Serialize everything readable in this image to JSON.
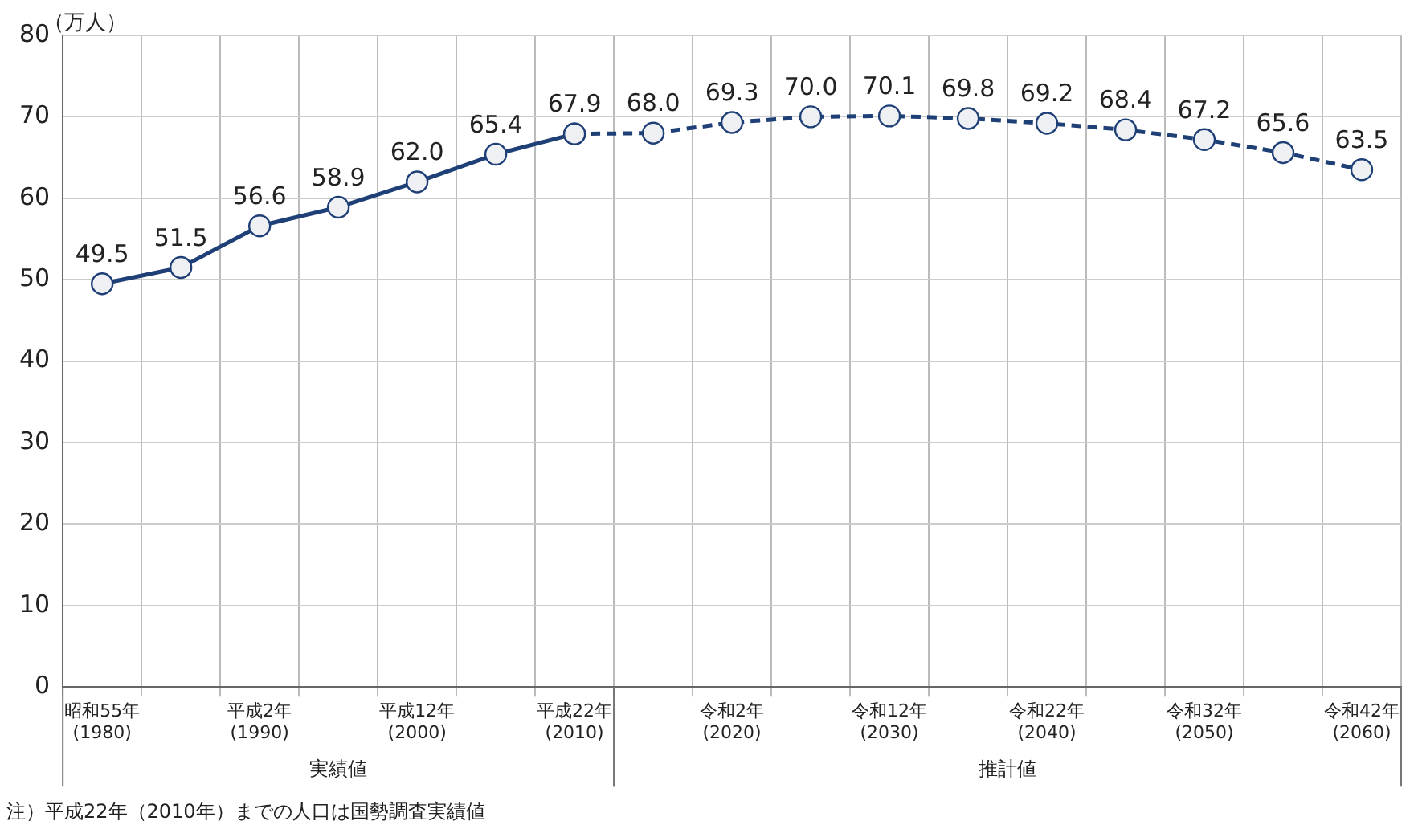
{
  "chart_data": {
    "type": "line",
    "ylabel": "（万人）",
    "categories": [
      "昭和55年\n(1980)",
      null,
      "平成2年\n(1990)",
      null,
      "平成12年\n(2000)",
      null,
      "平成22年\n(2010)",
      null,
      "令和2年\n(2020)",
      null,
      "令和12年\n(2030)",
      null,
      "令和22年\n(2040)",
      null,
      "令和32年\n(2050)",
      null,
      "令和42年\n(2060)"
    ],
    "series": [
      {
        "color": "#1f3f77",
        "line_style": "solid",
        "values": [
          49.5,
          51.5,
          56.6,
          58.9,
          62.0,
          65.4,
          67.9,
          null,
          null,
          null,
          null,
          null,
          null,
          null,
          null,
          null,
          null
        ],
        "value_labels": [
          "49.5",
          "51.5",
          "56.6",
          "58.9",
          "62.0",
          "65.4",
          "67.9",
          null,
          null,
          null,
          null,
          null,
          null,
          null,
          null,
          null,
          null
        ]
      },
      {
        "color": "#1f3f77",
        "line_style": "dashed",
        "values": [
          null,
          null,
          null,
          null,
          null,
          null,
          67.9,
          68.0,
          69.3,
          70.0,
          70.1,
          69.8,
          69.2,
          68.4,
          67.2,
          65.6,
          63.5
        ],
        "value_labels": [
          null,
          null,
          null,
          null,
          null,
          null,
          null,
          "68.0",
          "69.3",
          "70.0",
          "70.1",
          "69.8",
          "69.2",
          "68.4",
          "67.2",
          "65.6",
          "63.5"
        ]
      }
    ],
    "ylim": [
      0,
      80
    ],
    "yticks": [
      0,
      10,
      20,
      30,
      40,
      50,
      60,
      70,
      80
    ],
    "grid": true,
    "legend": false,
    "marker": "circle",
    "annotations": [
      "実績値",
      "推計値",
      "注）平成22年（2010年）までの人口は国勢調査実績値"
    ]
  }
}
